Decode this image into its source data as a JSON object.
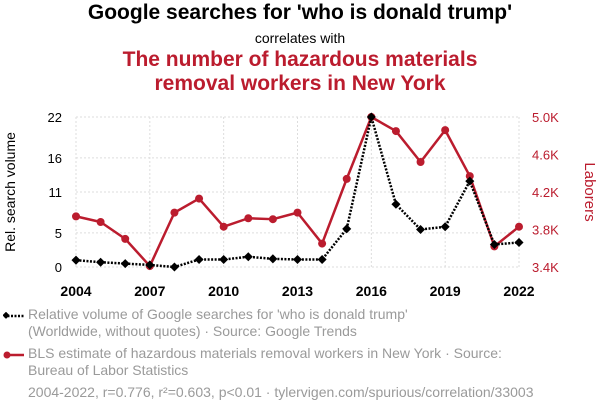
{
  "header": {
    "title": "Google searches for 'who is donald trump'",
    "subtitle": "correlates with",
    "second_title_line1": "The number of hazardous materials",
    "second_title_line2": "removal workers in New York"
  },
  "legend": {
    "series1_line1": "Relative volume of Google searches for 'who is donald trump'",
    "series1_line2": "(Worldwide, without quotes) · Source: Google Trends",
    "series2_line1": "BLS estimate of hazardous materials removal workers in New York · Source:",
    "series2_line2": "Bureau of Labor Statistics"
  },
  "footer": "2004-2022, r=0.776, r²=0.603, p<0.01 · tylervigen.com/spurious/correlation/33003",
  "colors": {
    "series1": "#000000",
    "series2": "#bb1c2e",
    "grid": "#dddddd"
  },
  "chart_data": {
    "type": "line",
    "x": [
      2004,
      2005,
      2006,
      2007,
      2008,
      2009,
      2010,
      2011,
      2012,
      2013,
      2014,
      2015,
      2016,
      2017,
      2018,
      2019,
      2020,
      2021,
      2022
    ],
    "x_ticks": [
      2004,
      2007,
      2010,
      2013,
      2016,
      2019,
      2022
    ],
    "xlim": [
      2004,
      2022
    ],
    "grid": true,
    "y_left": {
      "label": "Rel. search volume",
      "ticks": [
        0,
        5,
        11,
        16,
        22
      ],
      "ylim": [
        0,
        22
      ]
    },
    "y_right": {
      "label": "Laborers",
      "ticks": [
        3400,
        3800,
        4200,
        4600,
        5000
      ],
      "tick_labels": [
        "3.4K",
        "3.8K",
        "4.2K",
        "4.6K",
        "5.0K"
      ],
      "ylim": [
        3400,
        5000
      ]
    },
    "series": [
      {
        "axis": "left",
        "values": [
          1,
          0.7,
          0.5,
          0.3,
          0,
          1.1,
          1.1,
          1.5,
          1.2,
          1.1,
          1.1,
          5.6,
          22,
          9.2,
          5.5,
          5.9,
          12.6,
          3.3,
          3.6
        ]
      },
      {
        "axis": "right",
        "values": [
          3940,
          3880,
          3700,
          3410,
          3980,
          4130,
          3830,
          3920,
          3910,
          3980,
          3650,
          4340,
          5000,
          4850,
          4520,
          4860,
          4370,
          3620,
          3830
        ]
      }
    ]
  }
}
